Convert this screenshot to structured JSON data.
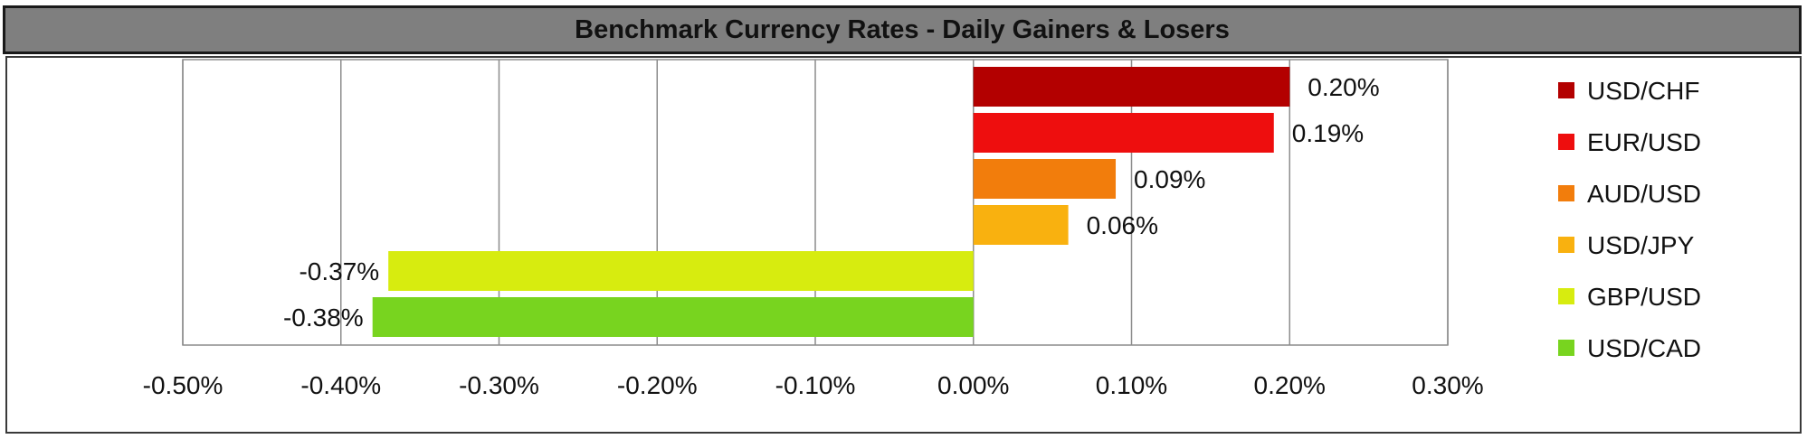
{
  "chart_data": {
    "type": "bar",
    "orientation": "horizontal",
    "title": "Benchmark Currency Rates - Daily Gainers & Losers",
    "categories": [
      "USD/CHF",
      "EUR/USD",
      "AUD/USD",
      "USD/JPY",
      "GBP/USD",
      "USD/CAD"
    ],
    "values": [
      0.2,
      0.19,
      0.09,
      0.06,
      -0.37,
      -0.38
    ],
    "data_labels": [
      "0.20%",
      "0.19%",
      "0.09%",
      "0.06%",
      "-0.37%",
      "-0.38%"
    ],
    "colors": [
      "#b30000",
      "#ee0e0e",
      "#f27d0c",
      "#f9b10f",
      "#d7ec0f",
      "#78d41f"
    ],
    "xlim": [
      -0.5,
      0.3
    ],
    "x_ticks": [
      -0.5,
      -0.4,
      -0.3,
      -0.2,
      -0.1,
      0.0,
      0.1,
      0.2,
      0.3
    ],
    "x_tick_labels": [
      "-0.50%",
      "-0.40%",
      "-0.30%",
      "-0.20%",
      "-0.10%",
      "0.00%",
      "0.10%",
      "0.20%",
      "0.30%"
    ],
    "grid": "vertical",
    "legend_position": "right",
    "legend": [
      "USD/CHF",
      "EUR/USD",
      "AUD/USD",
      "USD/JPY",
      "GBP/USD",
      "USD/CAD"
    ]
  }
}
